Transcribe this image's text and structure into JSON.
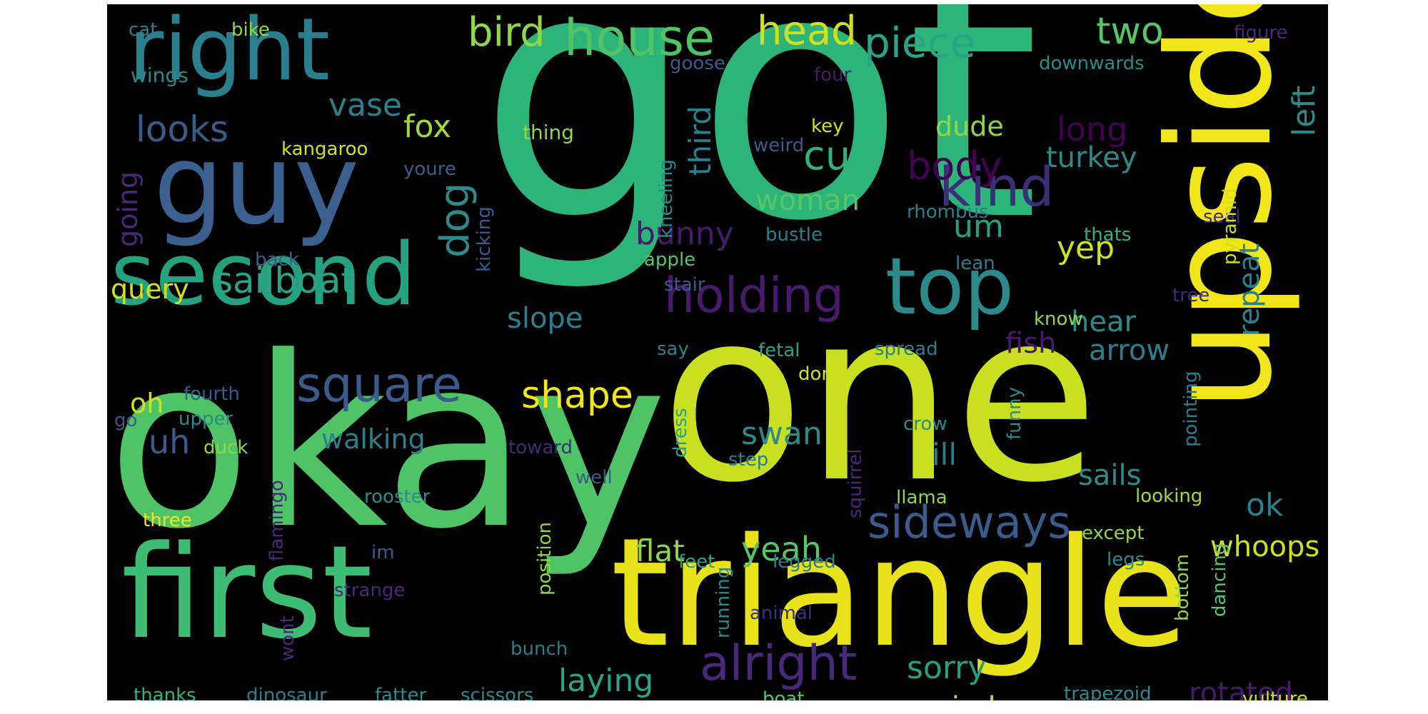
{
  "palette": {
    "background": "#000000",
    "purple": "#440154",
    "indigo": "#3b2f78",
    "blue": "#3b5b8c",
    "teal": "#2a7f8e",
    "green_teal": "#24a17f",
    "green": "#2db47b",
    "light_green": "#4fc466",
    "lime": "#8fd744",
    "yellow_green": "#c8e020",
    "yellow": "#f0e61a"
  },
  "words": [
    {
      "text": "got",
      "color": "#2db47b",
      "vertical": false
    },
    {
      "text": "okay",
      "color": "#4fc466",
      "vertical": false
    },
    {
      "text": "one",
      "color": "#c8e020",
      "vertical": false
    },
    {
      "text": "upside",
      "color": "#f0e61a",
      "vertical": true
    },
    {
      "text": "triangle",
      "color": "#e8e21a",
      "vertical": false
    },
    {
      "text": "first",
      "color": "#3ebc74",
      "vertical": false
    },
    {
      "text": "guy",
      "color": "#3b6090",
      "vertical": false
    },
    {
      "text": "second",
      "color": "#24a17f",
      "vertical": false
    },
    {
      "text": "right",
      "color": "#2a7f8e",
      "vertical": false
    },
    {
      "text": "house",
      "color": "#4fc466",
      "vertical": false
    },
    {
      "text": "head",
      "color": "#d0e11c",
      "vertical": false
    },
    {
      "text": "bird",
      "color": "#8fd744",
      "vertical": false
    },
    {
      "text": "piece",
      "color": "#2aa486",
      "vertical": false
    },
    {
      "text": "two",
      "color": "#56c667",
      "vertical": false
    },
    {
      "text": "top",
      "color": "#2a8a8c",
      "vertical": false
    },
    {
      "text": "holding",
      "color": "#481a6c",
      "vertical": false
    },
    {
      "text": "kind",
      "color": "#3b2f78",
      "vertical": false
    },
    {
      "text": "square",
      "color": "#3b5b8c",
      "vertical": false
    },
    {
      "text": "sideways",
      "color": "#3b5b8c",
      "vertical": false
    },
    {
      "text": "alright",
      "color": "#482878",
      "vertical": false
    },
    {
      "text": "sailboat",
      "color": "#2aa486",
      "vertical": false
    },
    {
      "text": "looks",
      "color": "#3b5b8c",
      "vertical": false
    },
    {
      "text": "vase",
      "color": "#2a7f8e",
      "vertical": false
    },
    {
      "text": "cut",
      "color": "#2db47b",
      "vertical": false
    },
    {
      "text": "body",
      "color": "#440154",
      "vertical": false
    },
    {
      "text": "woman",
      "color": "#56c667",
      "vertical": false
    },
    {
      "text": "shape",
      "color": "#f0e61a",
      "vertical": false
    },
    {
      "text": "fox",
      "color": "#a0da39",
      "vertical": false
    },
    {
      "text": "dog",
      "color": "#2a8a8c",
      "vertical": true
    },
    {
      "text": "um",
      "color": "#24a17f",
      "vertical": false
    },
    {
      "text": "yep",
      "color": "#d0e11c",
      "vertical": false
    },
    {
      "text": "turkey",
      "color": "#2a8a8c",
      "vertical": false
    },
    {
      "text": "long",
      "color": "#440154",
      "vertical": false
    },
    {
      "text": "dude",
      "color": "#8fd744",
      "vertical": false
    },
    {
      "text": "left",
      "color": "#2a8a8c",
      "vertical": true
    },
    {
      "text": "repeat",
      "color": "#2a7f8e",
      "vertical": true
    },
    {
      "text": "third",
      "color": "#2a7f8e",
      "vertical": true
    },
    {
      "text": "query",
      "color": "#d0e11c",
      "vertical": false
    },
    {
      "text": "going",
      "color": "#482878",
      "vertical": true
    },
    {
      "text": "bunny",
      "color": "#481a6c",
      "vertical": false
    },
    {
      "text": "slope",
      "color": "#2a7f8e",
      "vertical": false
    },
    {
      "text": "hear",
      "color": "#2a8a8c",
      "vertical": false
    },
    {
      "text": "fish",
      "color": "#481a6c",
      "vertical": false
    },
    {
      "text": "arrow",
      "color": "#2a7f8e",
      "vertical": false
    },
    {
      "text": "oh",
      "color": "#d0e11c",
      "vertical": false
    },
    {
      "text": "uh",
      "color": "#3b5b8c",
      "vertical": false
    },
    {
      "text": "walking",
      "color": "#2a7f8e",
      "vertical": false
    },
    {
      "text": "swan",
      "color": "#2a8a8c",
      "vertical": false
    },
    {
      "text": "ill",
      "color": "#2a7f8e",
      "vertical": false
    },
    {
      "text": "sails",
      "color": "#2a8a8c",
      "vertical": false
    },
    {
      "text": "ok",
      "color": "#2a7f8e",
      "vertical": false
    },
    {
      "text": "flat",
      "color": "#8fd744",
      "vertical": false
    },
    {
      "text": "yeah",
      "color": "#56c667",
      "vertical": false
    },
    {
      "text": "whoops",
      "color": "#d0e11c",
      "vertical": false
    },
    {
      "text": "laying",
      "color": "#2aa486",
      "vertical": false
    },
    {
      "text": "sorry",
      "color": "#24a17f",
      "vertical": false
    },
    {
      "text": "rotated",
      "color": "#481a6c",
      "vertical": false
    },
    {
      "text": "windows",
      "color": "#d0e11c",
      "vertical": false
    },
    {
      "text": "cat",
      "color": "#2a7f8e",
      "vertical": false
    },
    {
      "text": "bike",
      "color": "#8fd744",
      "vertical": false
    },
    {
      "text": "wings",
      "color": "#2a8a8c",
      "vertical": false
    },
    {
      "text": "goose",
      "color": "#3b5b8c",
      "vertical": false
    },
    {
      "text": "four",
      "color": "#481a6c",
      "vertical": false
    },
    {
      "text": "downwards",
      "color": "#2a8a8c",
      "vertical": false
    },
    {
      "text": "figure",
      "color": "#482878",
      "vertical": false
    },
    {
      "text": "thing",
      "color": "#8fd744",
      "vertical": false
    },
    {
      "text": "kangaroo",
      "color": "#d0e11c",
      "vertical": false
    },
    {
      "text": "youre",
      "color": "#3b5b8c",
      "vertical": false
    },
    {
      "text": "weird",
      "color": "#3b5b8c",
      "vertical": false
    },
    {
      "text": "key",
      "color": "#d0e11c",
      "vertical": false
    },
    {
      "text": "kneeling",
      "color": "#2a8a8c",
      "vertical": true
    },
    {
      "text": "kicking",
      "color": "#3b5b8c",
      "vertical": true
    },
    {
      "text": "rhombus",
      "color": "#2a7f8e",
      "vertical": false
    },
    {
      "text": "seal",
      "color": "#482878",
      "vertical": false
    },
    {
      "text": "pyramid",
      "color": "#d0e11c",
      "vertical": true
    },
    {
      "text": "thats",
      "color": "#2db47b",
      "vertical": false
    },
    {
      "text": "bustle",
      "color": "#2a7f8e",
      "vertical": false
    },
    {
      "text": "back",
      "color": "#3b5b8c",
      "vertical": false
    },
    {
      "text": "apple",
      "color": "#56c667",
      "vertical": false
    },
    {
      "text": "lean",
      "color": "#2a7f8e",
      "vertical": false
    },
    {
      "text": "stair",
      "color": "#3b5b8c",
      "vertical": false
    },
    {
      "text": "tree",
      "color": "#3b2f78",
      "vertical": false
    },
    {
      "text": "know",
      "color": "#8fd744",
      "vertical": false
    },
    {
      "text": "say",
      "color": "#2a7f8e",
      "vertical": false
    },
    {
      "text": "fetal",
      "color": "#2aa486",
      "vertical": false
    },
    {
      "text": "spread",
      "color": "#2a7f8e",
      "vertical": false
    },
    {
      "text": "dont",
      "color": "#d0e11c",
      "vertical": false
    },
    {
      "text": "fourth",
      "color": "#3b5b8c",
      "vertical": false
    },
    {
      "text": "upper",
      "color": "#2a8a8c",
      "vertical": false
    },
    {
      "text": "go",
      "color": "#3b5b8c",
      "vertical": false
    },
    {
      "text": "duck",
      "color": "#8fd744",
      "vertical": false
    },
    {
      "text": "toward",
      "color": "#3b2f78",
      "vertical": false
    },
    {
      "text": "dress",
      "color": "#2aa486",
      "vertical": true
    },
    {
      "text": "crow",
      "color": "#2a8a8c",
      "vertical": false
    },
    {
      "text": "funny",
      "color": "#2a8a8c",
      "vertical": true
    },
    {
      "text": "pointing",
      "color": "#2a7f8e",
      "vertical": true
    },
    {
      "text": "well",
      "color": "#3b5b8c",
      "vertical": false
    },
    {
      "text": "step",
      "color": "#2a7f8e",
      "vertical": false
    },
    {
      "text": "squirrel",
      "color": "#482878",
      "vertical": true
    },
    {
      "text": "llama",
      "color": "#8fd744",
      "vertical": false
    },
    {
      "text": "looking",
      "color": "#a0da39",
      "vertical": false
    },
    {
      "text": "flamingo",
      "color": "#482878",
      "vertical": true
    },
    {
      "text": "rooster",
      "color": "#2a8a8c",
      "vertical": false
    },
    {
      "text": "three",
      "color": "#f0e61a",
      "vertical": false
    },
    {
      "text": "position",
      "color": "#8fd744",
      "vertical": true
    },
    {
      "text": "im",
      "color": "#3b5b8c",
      "vertical": false
    },
    {
      "text": "feet",
      "color": "#2aa486",
      "vertical": false
    },
    {
      "text": "legged",
      "color": "#2a7f8e",
      "vertical": false
    },
    {
      "text": "except",
      "color": "#8fd744",
      "vertical": false
    },
    {
      "text": "legs",
      "color": "#2a8a8c",
      "vertical": false
    },
    {
      "text": "strange",
      "color": "#482878",
      "vertical": false
    },
    {
      "text": "animal",
      "color": "#3b2f78",
      "vertical": false
    },
    {
      "text": "running",
      "color": "#2a8a8c",
      "vertical": true
    },
    {
      "text": "bottom",
      "color": "#8fd744",
      "vertical": true
    },
    {
      "text": "dancing",
      "color": "#56c667",
      "vertical": true
    },
    {
      "text": "wont",
      "color": "#482878",
      "vertical": true
    },
    {
      "text": "bunch",
      "color": "#2a7f8e",
      "vertical": false
    },
    {
      "text": "thanks",
      "color": "#2db47b",
      "vertical": false
    },
    {
      "text": "dinosaur",
      "color": "#2a7f8e",
      "vertical": false
    },
    {
      "text": "fatter",
      "color": "#2a8a8c",
      "vertical": false
    },
    {
      "text": "scissors",
      "color": "#2a8a8c",
      "vertical": false
    },
    {
      "text": "boat",
      "color": "#56c667",
      "vertical": false
    },
    {
      "text": "trapezoid",
      "color": "#2a8a8c",
      "vertical": false
    },
    {
      "text": "vulture",
      "color": "#d0e11c",
      "vertical": false
    }
  ]
}
